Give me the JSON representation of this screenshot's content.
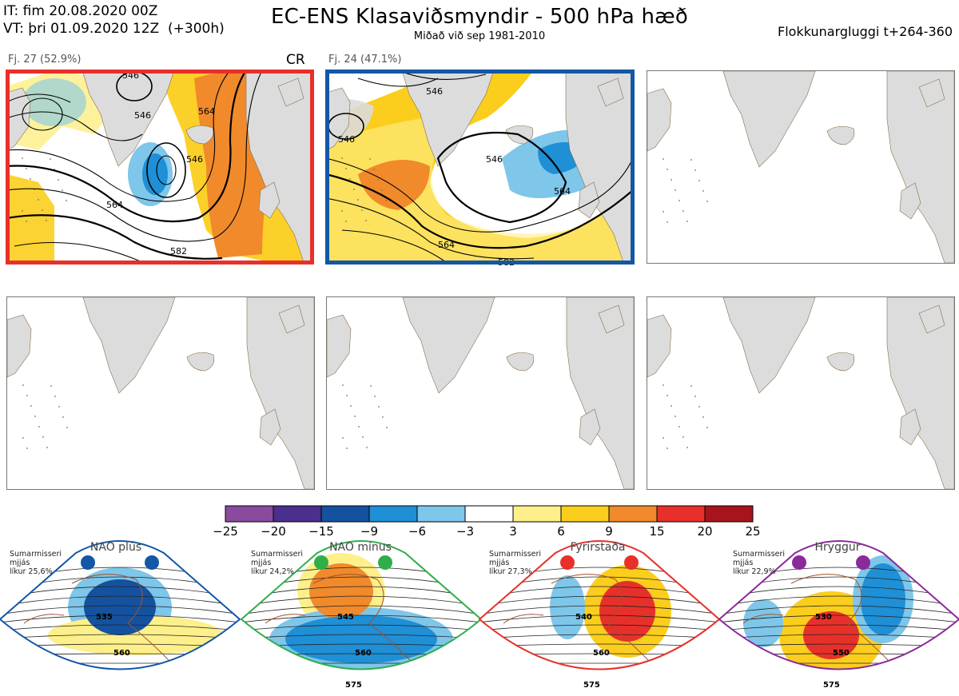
{
  "header": {
    "init_time": "IT: fim 20.08.2020 00Z",
    "valid_time": "VT: þri 01.09.2020 12Z  (+300h)",
    "title": "EC-ENS Klasaviðsmyndir - 500 hPa hæð",
    "subtitle": "Miðað við sep 1981-2010",
    "window": "Flokkunargluggi t+264-360"
  },
  "panels": [
    {
      "label": "Fj. 27 (52.9%)",
      "tag": "CR",
      "frame_color": "#e8302a",
      "contours": [
        "546",
        "546",
        "564",
        "564",
        "546",
        "582"
      ]
    },
    {
      "label": "Fj. 24 (47.1%)",
      "tag": "",
      "frame_color": "#1357a6",
      "contours": [
        "546",
        "546",
        "546",
        "564",
        "564",
        "582"
      ]
    },
    {
      "label": "",
      "tag": ""
    },
    {
      "label": "",
      "tag": ""
    },
    {
      "label": "",
      "tag": ""
    },
    {
      "label": "",
      "tag": ""
    }
  ],
  "colorbar": {
    "ticks": [
      "−25",
      "−20",
      "−15",
      "−9",
      "−6",
      "−3",
      "3",
      "6",
      "9",
      "15",
      "20",
      "25"
    ],
    "colors": [
      "#8a4b9e",
      "#4a2f8e",
      "#1452a0",
      "#1f8fd6",
      "#7ec6ea",
      "#ffffff",
      "#fdf08a",
      "#fbce1d",
      "#f18a2b",
      "#e8302a",
      "#a8141c"
    ]
  },
  "regimes": [
    {
      "title": "NAO plús",
      "note": "Sumarmisseri\nmjjás\nlíkur 25,6%",
      "color": "#1357a6",
      "labels": [
        "535",
        "560"
      ]
    },
    {
      "title": "NAO mínus",
      "note": "Sumarmisseri\nmjjás\nlíkur 24,2%",
      "color": "#2fae4a",
      "labels": [
        "545",
        "560",
        "575"
      ]
    },
    {
      "title": "Fyrirstaða",
      "note": "Sumarmisseri\nmjjás\nlíkur 27,3%",
      "color": "#e8302a",
      "labels": [
        "540",
        "560",
        "575"
      ]
    },
    {
      "title": "Hryggur",
      "note": "Sumarmisseri\nmjjás\nlíkur 22,9%",
      "color": "#8b2a9a",
      "labels": [
        "530",
        "550",
        "575"
      ]
    }
  ]
}
